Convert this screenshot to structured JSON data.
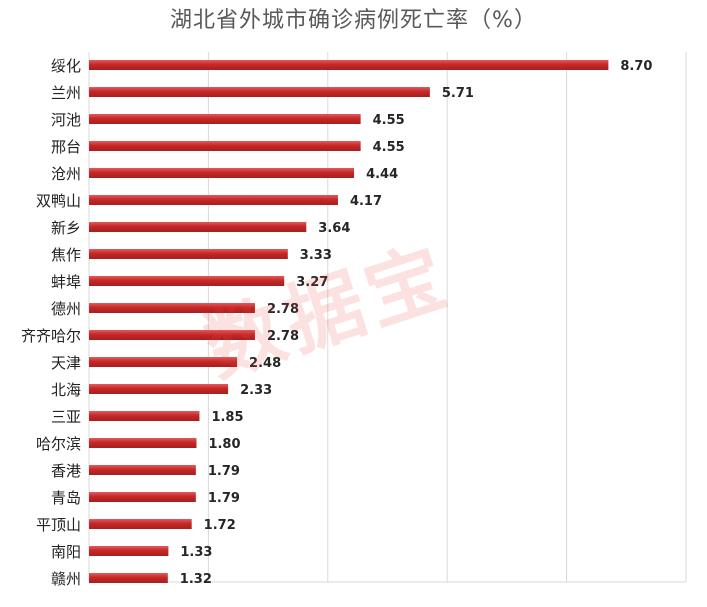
{
  "chart_data": {
    "type": "bar",
    "orientation": "horizontal",
    "title": "湖北省外城市确诊病例死亡率（%）",
    "xlabel": "",
    "ylabel": "",
    "xlim": [
      0,
      10
    ],
    "grid": "vertical",
    "legend": "none",
    "bar_color": "#c62828",
    "categories": [
      "绥化",
      "兰州",
      "河池",
      "邢台",
      "沧州",
      "双鸭山",
      "新乡",
      "焦作",
      "蚌埠",
      "德州",
      "齐齐哈尔",
      "天津",
      "北海",
      "三亚",
      "哈尔滨",
      "香港",
      "青岛",
      "平顶山",
      "南阳",
      "赣州"
    ],
    "values": [
      8.7,
      5.71,
      4.55,
      4.55,
      4.44,
      4.17,
      3.64,
      3.33,
      3.27,
      2.78,
      2.78,
      2.48,
      2.33,
      1.85,
      1.8,
      1.79,
      1.79,
      1.72,
      1.33,
      1.32
    ],
    "data_labels": [
      "8.70",
      "5.71",
      "4.55",
      "4.55",
      "4.44",
      "4.17",
      "3.64",
      "3.33",
      "3.27",
      "2.78",
      "2.78",
      "2.48",
      "2.33",
      "1.85",
      "1.80",
      "1.79",
      "1.79",
      "1.72",
      "1.33",
      "1.32"
    ]
  },
  "watermark": "数据宝"
}
